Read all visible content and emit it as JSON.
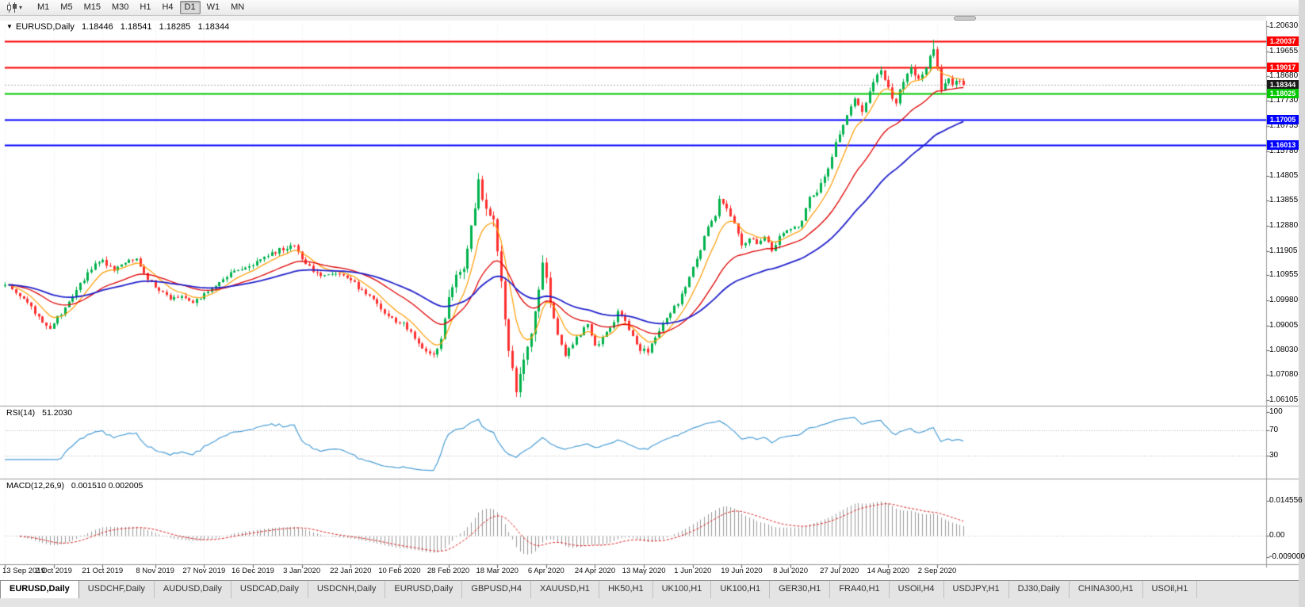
{
  "toolbar": {
    "timeframes": [
      "M1",
      "M5",
      "M15",
      "M30",
      "H1",
      "H4",
      "D1",
      "W1",
      "MN"
    ],
    "active_timeframe": "D1",
    "dropdown_caret": "▾"
  },
  "window": {
    "marker": "▼",
    "symbol": "EURUSD,Daily",
    "open": "1.18446",
    "high": "1.18541",
    "low": "1.18285",
    "close": "1.18344"
  },
  "price_axis": {
    "labels": [
      "1.20630",
      "1.19655",
      "1.18680",
      "1.17730",
      "1.16755",
      "1.15780",
      "1.14805",
      "1.13855",
      "1.12880",
      "1.11905",
      "1.10955",
      "1.09980",
      "1.09005",
      "1.08030",
      "1.07080",
      "1.06105"
    ]
  },
  "levels": [
    {
      "label": "1.20037",
      "value": 1.20037,
      "color": "#ff0000"
    },
    {
      "label": "1.19017",
      "value": 1.19017,
      "color": "#ff0000"
    },
    {
      "label": "1.18344",
      "value": 1.18344,
      "color": "#1a1a1a",
      "style": "current"
    },
    {
      "label": "1.18025",
      "value": 1.18025,
      "color": "#00c800"
    },
    {
      "label": "1.17005",
      "value": 1.17005,
      "color": "#0000ff"
    },
    {
      "label": "1.16013",
      "value": 1.16013,
      "color": "#0000ff"
    }
  ],
  "rsi": {
    "title": "RSI(14)",
    "value": "51.2030",
    "color": "#4a9ed6",
    "guides": [
      70,
      30
    ],
    "axis": [
      {
        "label": "100",
        "value": 100
      },
      {
        "label": "70",
        "value": 70
      },
      {
        "label": "30",
        "value": 30
      }
    ]
  },
  "macd": {
    "title": "MACD(12,26,9)",
    "values": "0.001510 0.002005",
    "axis": [
      {
        "label": "0.014556",
        "value": 0.014556
      },
      {
        "label": "0.00",
        "value": 0
      },
      {
        "label": "-0.009000",
        "value": -0.009
      }
    ]
  },
  "date_axis": {
    "labels": [
      "13 Sep 2019",
      "2 Oct 2019",
      "21 Oct 2019",
      "8 Nov 2019",
      "27 Nov 2019",
      "16 Dec 2019",
      "3 Jan 2020",
      "22 Jan 2020",
      "10 Feb 2020",
      "28 Feb 2020",
      "18 Mar 2020",
      "6 Apr 2020",
      "24 Apr 2020",
      "13 May 2020",
      "1 Jun 2020",
      "19 Jun 2020",
      "8 Jul 2020",
      "27 Jul 2020",
      "14 Aug 2020",
      "2 Sep 2020"
    ],
    "tick_indices": [
      0,
      13,
      26,
      40,
      53,
      66,
      79,
      92,
      105,
      118,
      131,
      144,
      157,
      170,
      183,
      196,
      209,
      222,
      235,
      248
    ]
  },
  "tabs": {
    "items": [
      "EURUSD,Daily",
      "USDCHF,Daily",
      "AUDUSD,Daily",
      "USDCAD,Daily",
      "USDCNH,Daily",
      "EURUSD,Daily",
      "GBPUSD,H4",
      "XAUUSD,H1",
      "HK50,H1",
      "UK100,H1",
      "UK100,H1",
      "GER30,H1",
      "FRA40,H1",
      "USOil,H4",
      "USDJPY,H1",
      "DJ30,Daily",
      "CHINA300,H1",
      "USOil,H1"
    ],
    "active_index": 0
  },
  "chart_data": {
    "type": "candlestick",
    "symbol": "EURUSD",
    "timeframe": "D1",
    "title": "EURUSD,Daily 1.18446 1.18541 1.18285 1.18344",
    "price_range": [
      1.06105,
      1.2063
    ],
    "candle_count": 256,
    "colors": {
      "up": "#00b24c",
      "down": "#ff3030",
      "ma_fast": "#ff9c00",
      "ma_mid": "#e00000",
      "ma_slow": "#2222cc",
      "macd_hist": "#9a9a9a",
      "macd_signal": "#dd2222",
      "grid": "#ececec"
    },
    "moving_averages": [
      {
        "period": 8,
        "color_key": "ma_fast",
        "width": 1.2
      },
      {
        "period": 24,
        "color_key": "ma_mid",
        "width": 1.3
      },
      {
        "period": 50,
        "color_key": "ma_slow",
        "width": 1.8
      }
    ],
    "anchors": [
      [
        0,
        1.1065
      ],
      [
        3,
        1.103
      ],
      [
        6,
        1.0985
      ],
      [
        9,
        1.093
      ],
      [
        12,
        1.0895
      ],
      [
        14,
        1.093
      ],
      [
        17,
        1.0985
      ],
      [
        20,
        1.106
      ],
      [
        23,
        1.1125
      ],
      [
        26,
        1.115
      ],
      [
        29,
        1.111
      ],
      [
        32,
        1.115
      ],
      [
        35,
        1.1155
      ],
      [
        38,
        1.1085
      ],
      [
        41,
        1.1035
      ],
      [
        44,
        1.1005
      ],
      [
        47,
        1.101
      ],
      [
        50,
        1.0995
      ],
      [
        53,
        1.102
      ],
      [
        56,
        1.106
      ],
      [
        59,
        1.1095
      ],
      [
        62,
        1.1115
      ],
      [
        65,
        1.113
      ],
      [
        68,
        1.115
      ],
      [
        71,
        1.118
      ],
      [
        74,
        1.12
      ],
      [
        77,
        1.1215
      ],
      [
        79,
        1.1165
      ],
      [
        82,
        1.111
      ],
      [
        85,
        1.1095
      ],
      [
        88,
        1.11
      ],
      [
        91,
        1.1085
      ],
      [
        94,
        1.105
      ],
      [
        97,
        1.102
      ],
      [
        100,
        1.096
      ],
      [
        103,
        1.0925
      ],
      [
        106,
        1.0905
      ],
      [
        109,
        1.0855
      ],
      [
        112,
        1.08
      ],
      [
        114,
        1.0785
      ],
      [
        116,
        1.084
      ],
      [
        118,
        1.1025
      ],
      [
        120,
        1.109
      ],
      [
        122,
        1.1135
      ],
      [
        124,
        1.128
      ],
      [
        126,
        1.145
      ],
      [
        128,
        1.136
      ],
      [
        130,
        1.13
      ],
      [
        131,
        1.118
      ],
      [
        132,
        1.106
      ],
      [
        133,
        1.092
      ],
      [
        134,
        1.08
      ],
      [
        135,
        1.072
      ],
      [
        136,
        1.066
      ],
      [
        137,
        1.07
      ],
      [
        138,
        1.078
      ],
      [
        139,
        1.082
      ],
      [
        140,
        1.088
      ],
      [
        141,
        1.097
      ],
      [
        142,
        1.104
      ],
      [
        143,
        1.113
      ],
      [
        144,
        1.108
      ],
      [
        145,
        1.099
      ],
      [
        146,
        1.092
      ],
      [
        147,
        1.086
      ],
      [
        148,
        1.082
      ],
      [
        149,
        1.079
      ],
      [
        151,
        1.083
      ],
      [
        153,
        1.087
      ],
      [
        155,
        1.091
      ],
      [
        157,
        1.082
      ],
      [
        159,
        1.085
      ],
      [
        161,
        1.089
      ],
      [
        163,
        1.095
      ],
      [
        165,
        1.092
      ],
      [
        167,
        1.086
      ],
      [
        169,
        1.081
      ],
      [
        171,
        1.08
      ],
      [
        173,
        1.085
      ],
      [
        175,
        1.09
      ],
      [
        177,
        1.095
      ],
      [
        179,
        1.099
      ],
      [
        181,
        1.105
      ],
      [
        183,
        1.1135
      ],
      [
        185,
        1.12
      ],
      [
        187,
        1.128
      ],
      [
        189,
        1.133
      ],
      [
        190,
        1.1395
      ],
      [
        191,
        1.138
      ],
      [
        193,
        1.133
      ],
      [
        195,
        1.125
      ],
      [
        196,
        1.1205
      ],
      [
        198,
        1.124
      ],
      [
        200,
        1.122
      ],
      [
        202,
        1.125
      ],
      [
        204,
        1.119
      ],
      [
        206,
        1.125
      ],
      [
        208,
        1.1265
      ],
      [
        210,
        1.128
      ],
      [
        212,
        1.13
      ],
      [
        214,
        1.14
      ],
      [
        216,
        1.142
      ],
      [
        218,
        1.148
      ],
      [
        220,
        1.156
      ],
      [
        222,
        1.165
      ],
      [
        224,
        1.172
      ],
      [
        226,
        1.178
      ],
      [
        228,
        1.174
      ],
      [
        230,
        1.181
      ],
      [
        232,
        1.187
      ],
      [
        233,
        1.19
      ],
      [
        234,
        1.186
      ],
      [
        235,
        1.183
      ],
      [
        236,
        1.179
      ],
      [
        237,
        1.177
      ],
      [
        238,
        1.181
      ],
      [
        239,
        1.184
      ],
      [
        240,
        1.187
      ],
      [
        241,
        1.19
      ],
      [
        242,
        1.187
      ],
      [
        243,
        1.185
      ],
      [
        244,
        1.188
      ],
      [
        245,
        1.19
      ],
      [
        246,
        1.195
      ],
      [
        247,
        1.1966
      ],
      [
        248,
        1.191
      ],
      [
        249,
        1.181
      ],
      [
        250,
        1.184
      ],
      [
        251,
        1.186
      ],
      [
        252,
        1.183
      ],
      [
        253,
        1.185
      ],
      [
        254,
        1.1845
      ],
      [
        255,
        1.18344
      ]
    ]
  }
}
